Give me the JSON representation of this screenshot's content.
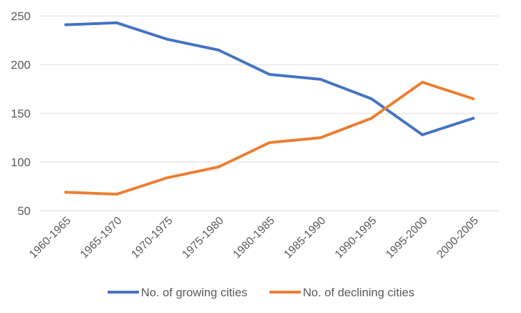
{
  "chart_data": {
    "type": "line",
    "title": "",
    "xlabel": "",
    "ylabel": "",
    "categories": [
      "1960-1965",
      "1965-1970",
      "1970-1975",
      "1975-1980",
      "1980-1985",
      "1985-1990",
      "1990-1995",
      "1995-2000",
      "2000-2005"
    ],
    "ylim": [
      50,
      250
    ],
    "yticks": [
      50,
      100,
      150,
      200,
      250
    ],
    "ytick_labels": [
      "50",
      "100",
      "150",
      "200",
      "250"
    ],
    "grid": true,
    "legend_position": "bottom",
    "series": [
      {
        "name": "No. of growing cities",
        "color": "#4472c4",
        "values": [
          241,
          243,
          226,
          215,
          190,
          185,
          165,
          128,
          145
        ]
      },
      {
        "name": "No. of declining cities",
        "color": "#ed7d31",
        "values": [
          69,
          67,
          84,
          95,
          120,
          125,
          145,
          182,
          165
        ]
      }
    ]
  }
}
